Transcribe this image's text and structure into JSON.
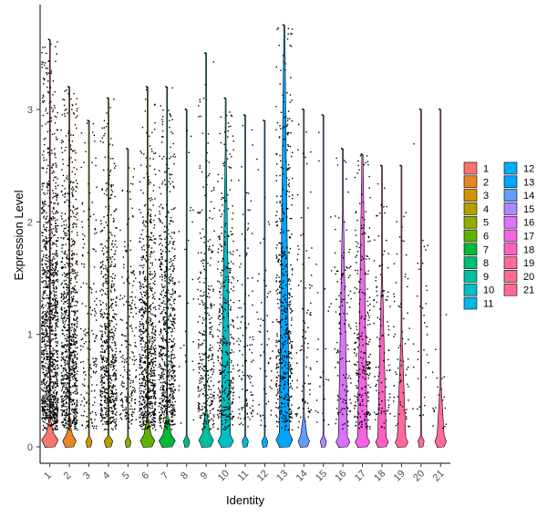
{
  "chart_data": {
    "type": "violin",
    "xlabel": "Identity",
    "ylabel": "Expression Level",
    "yticks": [
      0,
      1,
      2,
      3
    ],
    "ylim": [
      -0.15,
      3.9
    ],
    "categories": [
      "1",
      "2",
      "3",
      "4",
      "5",
      "6",
      "7",
      "8",
      "9",
      "10",
      "11",
      "12",
      "13",
      "14",
      "15",
      "16",
      "17",
      "18",
      "19",
      "20",
      "21"
    ],
    "colors": [
      "#F8766D",
      "#E88526",
      "#D39200",
      "#B79F00",
      "#93AA00",
      "#5EB300",
      "#00BA38",
      "#00BF74",
      "#00C19F",
      "#00BFC4",
      "#00B9E3",
      "#00ADFA",
      "#00A5FF",
      "#619CFF",
      "#AE87FF",
      "#DB72FB",
      "#F564E3",
      "#FF61C3",
      "#FF689F",
      "#FF6C90",
      "#FF6A98"
    ],
    "series": [
      {
        "category": "1",
        "max": 3.62,
        "violin_height": 0.25,
        "violin_width": 0.85,
        "points": 1200,
        "points_top": 2.9
      },
      {
        "category": "2",
        "max": 3.2,
        "violin_height": 0.2,
        "violin_width": 0.7,
        "points": 900,
        "points_top": 2.6
      },
      {
        "category": "3",
        "max": 2.9,
        "violin_height": 0.0,
        "violin_width": 0.0,
        "points": 180,
        "points_top": 2.5
      },
      {
        "category": "4",
        "max": 3.1,
        "violin_height": 0.1,
        "violin_width": 0.45,
        "points": 650,
        "points_top": 2.2
      },
      {
        "category": "5",
        "max": 2.65,
        "violin_height": 0.0,
        "violin_width": 0.0,
        "points": 220,
        "points_top": 2.1
      },
      {
        "category": "6",
        "max": 3.2,
        "violin_height": 0.25,
        "violin_width": 0.75,
        "points": 750,
        "points_top": 2.3
      },
      {
        "category": "7",
        "max": 3.2,
        "violin_height": 0.28,
        "violin_width": 0.85,
        "points": 700,
        "points_top": 2.3
      },
      {
        "category": "8",
        "max": 3.0,
        "violin_height": 0.0,
        "violin_width": 0.0,
        "points": 30,
        "points_top": 2.6
      },
      {
        "category": "9",
        "max": 3.5,
        "violin_height": 0.32,
        "violin_width": 0.75,
        "points": 320,
        "points_top": 2.4
      },
      {
        "category": "10",
        "max": 3.1,
        "violin_height": 2.6,
        "violin_width": 0.8,
        "points": 380,
        "points_top": 2.6
      },
      {
        "category": "11",
        "max": 2.95,
        "violin_height": 0.0,
        "violin_width": 0.0,
        "points": 120,
        "points_top": 2.2
      },
      {
        "category": "12",
        "max": 2.9,
        "violin_height": 0.0,
        "violin_width": 0.0,
        "points": 60,
        "points_top": 2.5
      },
      {
        "category": "13",
        "max": 3.75,
        "violin_height": 3.7,
        "violin_width": 0.85,
        "points": 520,
        "points_top": 3.3
      },
      {
        "category": "14",
        "max": 3.0,
        "violin_height": 0.28,
        "violin_width": 0.6,
        "points": 90,
        "points_top": 2.4
      },
      {
        "category": "15",
        "max": 2.95,
        "violin_height": 0.0,
        "violin_width": 0.0,
        "points": 30,
        "points_top": 2.5
      },
      {
        "category": "16",
        "max": 2.65,
        "violin_height": 2.1,
        "violin_width": 0.75,
        "points": 130,
        "points_top": 2.2
      },
      {
        "category": "17",
        "max": 2.6,
        "violin_height": 2.6,
        "violin_width": 0.8,
        "points": 260,
        "points_top": 2.4
      },
      {
        "category": "18",
        "max": 2.5,
        "violin_height": 1.5,
        "violin_width": 0.7,
        "points": 110,
        "points_top": 2.0
      },
      {
        "category": "19",
        "max": 2.5,
        "violin_height": 1.0,
        "violin_width": 0.7,
        "points": 70,
        "points_top": 1.8
      },
      {
        "category": "20",
        "max": 3.0,
        "violin_height": 0.0,
        "violin_width": 0.0,
        "points": 35,
        "points_top": 2.4
      },
      {
        "category": "21",
        "max": 3.0,
        "violin_height": 0.55,
        "violin_width": 0.6,
        "points": 20,
        "points_top": 1.2
      }
    ],
    "legend": {
      "placement": "right",
      "columns": 2,
      "labels": [
        "1",
        "2",
        "3",
        "4",
        "5",
        "6",
        "7",
        "8",
        "9",
        "10",
        "11",
        "12",
        "13",
        "14",
        "15",
        "16",
        "17",
        "18",
        "19",
        "20",
        "21"
      ]
    }
  }
}
